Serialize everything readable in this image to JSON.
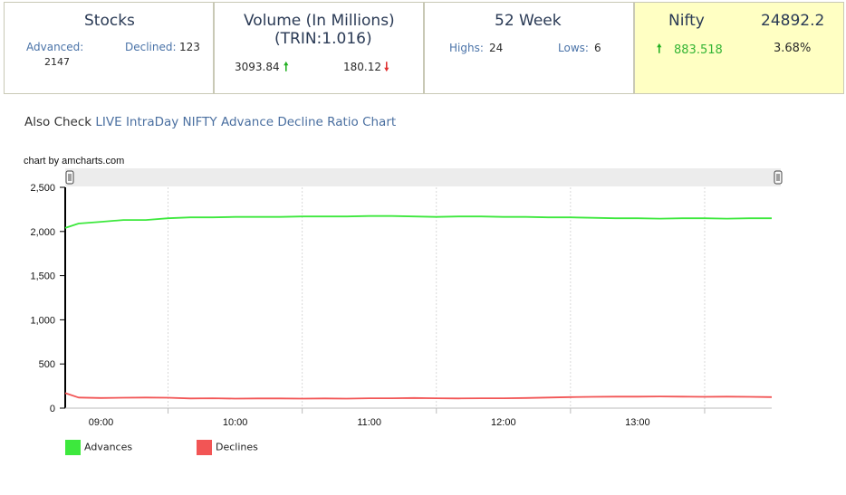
{
  "stocks": {
    "title": "Stocks",
    "advanced_label": "Advanced:",
    "advanced_value": "2147",
    "declined_label": "Declined:",
    "declined_value": "123"
  },
  "volume": {
    "title_line1": "Volume (In Millions)",
    "title_line2": "(TRIN:1.016)",
    "up_value": "3093.84",
    "down_value": "180.12"
  },
  "week52": {
    "title": "52 Week",
    "highs_label": "Highs:",
    "highs_value": "24",
    "lows_label": "Lows:",
    "lows_value": "6"
  },
  "nifty": {
    "label": "Nifty",
    "value": "24892.2",
    "change": "883.518",
    "change_pct": "3.68%"
  },
  "also_check": {
    "prefix": "Also Check ",
    "link_text": "LIVE IntraDay NIFTY Advance Decline Ratio Chart"
  },
  "credit": "chart by amcharts.com",
  "colors": {
    "advances": "#3de83d",
    "declines": "#f25555",
    "highlight": "#ffffc3",
    "link": "#4a6fa0"
  },
  "icons": {
    "up": "arrow-up-icon",
    "down": "arrow-down-icon",
    "scroll_handle": "scrollbar-grip-icon"
  },
  "chart_data": {
    "type": "line",
    "x_type": "time",
    "x": [
      "08:44",
      "08:50",
      "09:00",
      "09:10",
      "09:20",
      "09:30",
      "09:40",
      "09:50",
      "10:00",
      "10:10",
      "10:20",
      "10:30",
      "10:40",
      "10:50",
      "11:00",
      "11:10",
      "11:20",
      "11:30",
      "11:40",
      "11:50",
      "12:00",
      "12:10",
      "12:20",
      "12:30",
      "12:40",
      "12:50",
      "13:00",
      "13:10",
      "13:20",
      "13:30",
      "13:40",
      "13:50",
      "14:00"
    ],
    "series": [
      {
        "name": "Advances",
        "values": [
          2040,
          2090,
          2110,
          2130,
          2130,
          2150,
          2160,
          2160,
          2165,
          2165,
          2165,
          2170,
          2170,
          2170,
          2175,
          2175,
          2170,
          2165,
          2170,
          2170,
          2165,
          2165,
          2160,
          2160,
          2155,
          2150,
          2150,
          2145,
          2150,
          2150,
          2145,
          2150,
          2150
        ]
      },
      {
        "name": "Declines",
        "values": [
          170,
          120,
          115,
          118,
          120,
          118,
          110,
          112,
          108,
          110,
          110,
          108,
          110,
          108,
          112,
          112,
          115,
          112,
          110,
          112,
          112,
          115,
          120,
          125,
          128,
          130,
          130,
          132,
          130,
          128,
          130,
          128,
          125
        ]
      }
    ],
    "xticks": [
      "09:00",
      "10:00",
      "11:00",
      "12:00",
      "13:00"
    ],
    "yticks": [
      "0",
      "500",
      "1,000",
      "1,500",
      "2,000",
      "2,500"
    ],
    "ylim": [
      0,
      2500
    ],
    "xlim": [
      "08:44",
      "14:00"
    ],
    "grid": "vertical",
    "legend": "bottom-left"
  }
}
